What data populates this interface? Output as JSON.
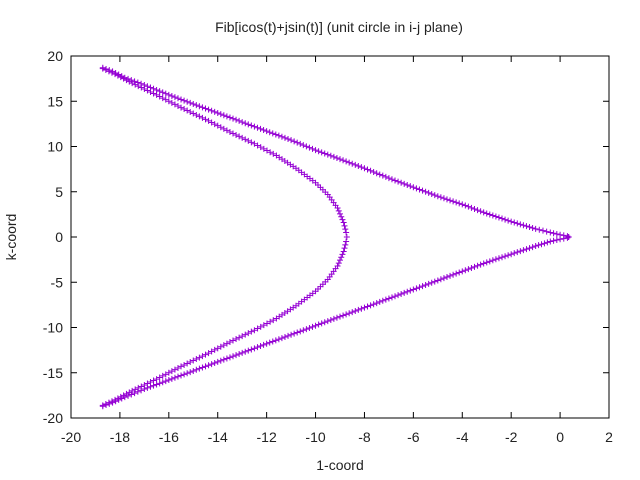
{
  "chart_data": {
    "type": "scatter",
    "title": "Fib[icos(t)+jsin(t)] (unit circle in i-j plane)",
    "xlabel": "1-coord",
    "ylabel": "k-coord",
    "xlim": [
      -20,
      2
    ],
    "ylim": [
      -20,
      20
    ],
    "xticks": [
      -20,
      -18,
      -16,
      -14,
      -12,
      -10,
      -8,
      -6,
      -4,
      -2,
      0,
      2
    ],
    "yticks": [
      -20,
      -15,
      -10,
      -5,
      0,
      5,
      10,
      15,
      20
    ],
    "grid": false,
    "legend": "none",
    "marker": "+",
    "color": "#9400d3",
    "series": [
      {
        "curve": "outer-arm-upper",
        "points": [
          [
            -18.7,
            18.7
          ],
          [
            -18.3,
            18.3
          ],
          [
            -17.8,
            17.6
          ],
          [
            -17.0,
            16.8
          ],
          [
            -16.0,
            15.7
          ],
          [
            -15.0,
            14.7
          ],
          [
            -14.0,
            13.7
          ],
          [
            -13.0,
            12.7
          ],
          [
            -12.0,
            11.7
          ],
          [
            -11.0,
            10.7
          ],
          [
            -10.0,
            9.6
          ],
          [
            -9.0,
            8.6
          ],
          [
            -8.0,
            7.6
          ],
          [
            -7.0,
            6.5
          ],
          [
            -6.0,
            5.5
          ],
          [
            -5.0,
            4.5
          ],
          [
            -4.0,
            3.6
          ],
          [
            -3.0,
            2.6
          ],
          [
            -2.0,
            1.7
          ],
          [
            -1.0,
            0.9
          ],
          [
            -0.4,
            0.5
          ],
          [
            0.0,
            0.25
          ],
          [
            0.3,
            0.1
          ],
          [
            0.35,
            0.0
          ]
        ]
      },
      {
        "curve": "outer-arm-lower",
        "points": [
          [
            0.35,
            0.0
          ],
          [
            0.3,
            -0.1
          ],
          [
            0.0,
            -0.25
          ],
          [
            -0.4,
            -0.5
          ],
          [
            -1.0,
            -1.0
          ],
          [
            -2.0,
            -1.9
          ],
          [
            -3.0,
            -2.8
          ],
          [
            -4.0,
            -3.8
          ],
          [
            -5.0,
            -4.8
          ],
          [
            -6.0,
            -5.8
          ],
          [
            -7.0,
            -6.8
          ],
          [
            -8.0,
            -7.8
          ],
          [
            -9.0,
            -8.8
          ],
          [
            -10.0,
            -9.8
          ],
          [
            -11.0,
            -10.8
          ],
          [
            -12.0,
            -11.8
          ],
          [
            -13.0,
            -12.8
          ],
          [
            -14.0,
            -13.8
          ],
          [
            -15.0,
            -14.8
          ],
          [
            -16.0,
            -15.8
          ],
          [
            -17.0,
            -16.8
          ],
          [
            -17.8,
            -17.7
          ],
          [
            -18.3,
            -18.3
          ],
          [
            -18.7,
            -18.7
          ]
        ]
      },
      {
        "curve": "inner-arc",
        "points": [
          [
            -18.7,
            18.6
          ],
          [
            -18.2,
            18.0
          ],
          [
            -17.5,
            17.0
          ],
          [
            -16.5,
            15.7
          ],
          [
            -15.5,
            14.3
          ],
          [
            -14.5,
            13.0
          ],
          [
            -13.5,
            11.6
          ],
          [
            -12.5,
            10.3
          ],
          [
            -11.6,
            9.0
          ],
          [
            -10.8,
            7.6
          ],
          [
            -10.0,
            6.0
          ],
          [
            -9.5,
            4.7
          ],
          [
            -9.1,
            3.2
          ],
          [
            -8.85,
            1.6
          ],
          [
            -8.75,
            0.5
          ],
          [
            -8.72,
            0.0
          ],
          [
            -8.75,
            -0.5
          ],
          [
            -8.85,
            -1.6
          ],
          [
            -9.1,
            -3.2
          ],
          [
            -9.5,
            -4.7
          ],
          [
            -10.0,
            -6.0
          ],
          [
            -10.8,
            -7.6
          ],
          [
            -11.6,
            -9.0
          ],
          [
            -12.5,
            -10.3
          ],
          [
            -13.5,
            -11.6
          ],
          [
            -14.5,
            -13.0
          ],
          [
            -15.5,
            -14.3
          ],
          [
            -16.5,
            -15.7
          ],
          [
            -17.5,
            -17.0
          ],
          [
            -18.2,
            -18.0
          ],
          [
            -18.7,
            -18.6
          ]
        ]
      }
    ]
  }
}
